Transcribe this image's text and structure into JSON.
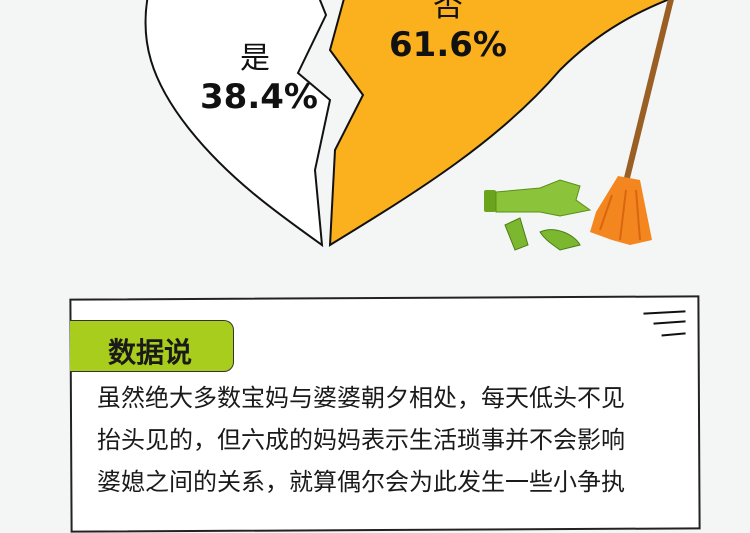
{
  "chart_data": {
    "type": "pie",
    "categories": [
      "是",
      "否"
    ],
    "values": [
      38.4,
      61.6
    ],
    "value_labels": [
      "38.4%",
      "61.6%"
    ],
    "colors": [
      "#ffffff",
      "#fbb11d"
    ],
    "style": "broken-heart"
  },
  "panel": {
    "title": "数据说",
    "lines": [
      "虽然绝大多数宝妈与婆婆朝夕相处，每天低头不见",
      "抬头见的，但六成的妈妈表示生活琐事并不会影响",
      "婆媳之间的关系，就算偶尔会为此发生一些小争执"
    ],
    "accent": "#a8cd1c"
  }
}
